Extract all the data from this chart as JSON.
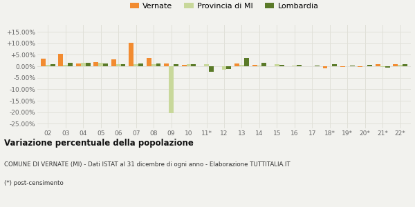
{
  "categories": [
    "02",
    "03",
    "04",
    "05",
    "06",
    "07",
    "08",
    "09",
    "10",
    "11*",
    "12",
    "13",
    "14",
    "15",
    "16",
    "17",
    "18*",
    "19*",
    "20*",
    "21*",
    "22*"
  ],
  "vernate": [
    3.3,
    5.5,
    1.2,
    1.8,
    3.0,
    10.2,
    3.5,
    1.2,
    0.6,
    0.0,
    0.0,
    1.2,
    0.5,
    0.0,
    0.0,
    0.0,
    -1.0,
    -0.3,
    -0.3,
    1.0,
    0.8
  ],
  "provincia_mi": [
    0.5,
    0.5,
    1.5,
    1.5,
    0.8,
    0.8,
    0.8,
    -20.5,
    1.0,
    0.8,
    -1.5,
    0.5,
    0.2,
    0.8,
    0.2,
    0.1,
    0.1,
    0.0,
    0.0,
    -0.3,
    0.5
  ],
  "lombardia": [
    0.8,
    1.5,
    1.5,
    1.2,
    1.0,
    1.2,
    1.2,
    1.0,
    1.0,
    -2.5,
    -1.2,
    3.5,
    1.5,
    0.5,
    0.5,
    0.3,
    0.8,
    0.2,
    0.5,
    -0.5,
    0.8
  ],
  "color_vernate": "#f28b30",
  "color_provincia": "#c8d89a",
  "color_lombardia": "#5a7a28",
  "title": "Variazione percentuale della popolazione",
  "subtitle1": "COMUNE DI VERNATE (MI) - Dati ISTAT al 31 dicembre di ogni anno - Elaborazione TUTTITALIA.IT",
  "subtitle2": "(*) post-censimento",
  "ylim": [
    -27,
    18
  ],
  "yticks": [
    -25,
    -20,
    -15,
    -10,
    -5,
    0,
    5,
    10,
    15
  ],
  "bg_color": "#f2f2ee",
  "grid_color": "#e0e0d8"
}
